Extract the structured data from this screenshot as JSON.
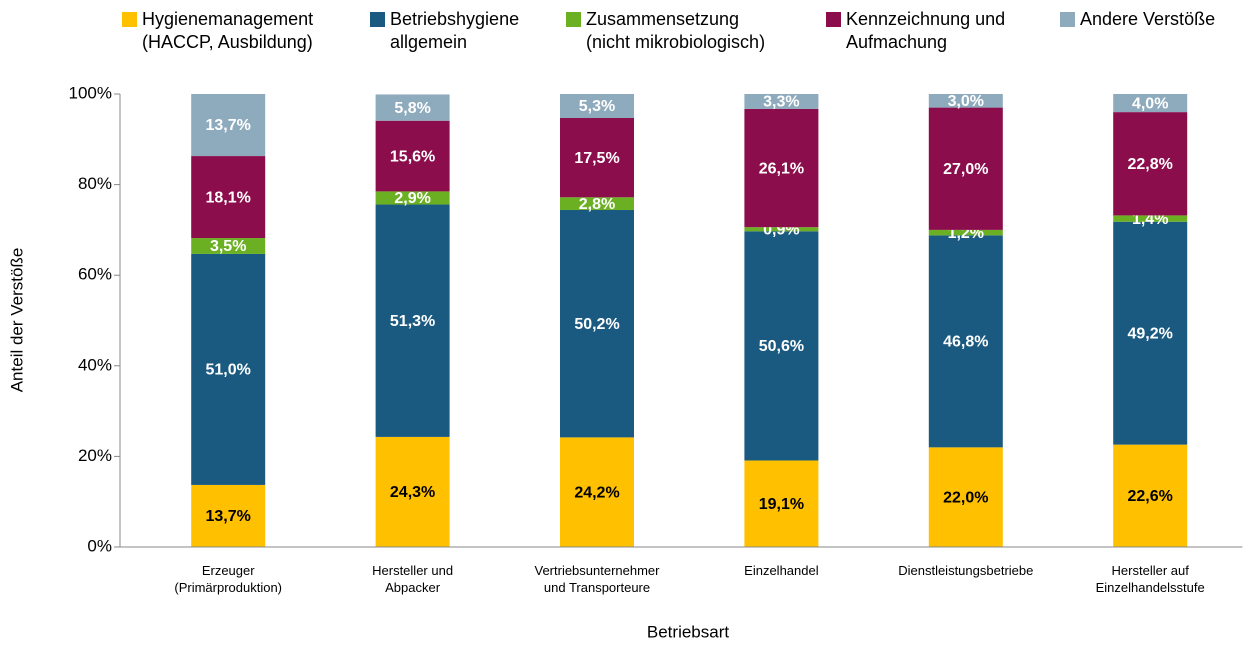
{
  "chart_data": {
    "type": "stacked_bar",
    "x_label": "Betriebsart",
    "y_label": "Anteil der Verstöße",
    "categories": [
      "Erzeuger\n(Primärproduktion)",
      "Hersteller und\nAbpacker",
      "Vertriebsunternehmer\nund Transporteure",
      "Einzelhandel",
      "Dienstleistungsbetriebe",
      "Hersteller auf\nEinzelhandelsstufe"
    ],
    "series": [
      {
        "name": "Hygienemanagement\n(HACCP, Ausbildung)",
        "color": "#ffc000",
        "values": [
          13.7,
          24.3,
          24.2,
          19.1,
          22.0,
          22.6
        ],
        "value_labels": [
          "13,7%",
          "24,3%",
          "24,2%",
          "19,1%",
          "22,0%",
          "22,6%"
        ]
      },
      {
        "name": "Betriebshygiene\nallgemein",
        "color": "#1b5a80",
        "values": [
          51.0,
          51.3,
          50.2,
          50.6,
          46.8,
          49.2
        ],
        "value_labels": [
          "51,0%",
          "51,3%",
          "50,2%",
          "50,6%",
          "46,8%",
          "49,2%"
        ]
      },
      {
        "name": "Zusammensetzung\n(nicht mikrobiologisch)",
        "color": "#6bb023",
        "values": [
          3.5,
          2.9,
          2.8,
          0.9,
          1.2,
          1.4
        ],
        "value_labels": [
          "3,5%",
          "2,9%",
          "2,8%",
          "0,9%",
          "1,2%",
          "1,4%"
        ]
      },
      {
        "name": "Kennzeichnung und\nAufmachung",
        "color": "#8b0d4b",
        "values": [
          18.1,
          15.6,
          17.5,
          26.1,
          27.0,
          22.8
        ],
        "value_labels": [
          "18,1%",
          "15,6%",
          "17,5%",
          "26,1%",
          "27,0%",
          "22,8%"
        ]
      },
      {
        "name": "Andere Verstöße",
        "color": "#8eaabd",
        "values": [
          13.7,
          5.8,
          5.3,
          3.3,
          3.0,
          4.0
        ],
        "value_labels": [
          "13,7%",
          "5,8%",
          "5,3%",
          "3,3%",
          "3,0%",
          "4,0%"
        ]
      }
    ],
    "ylim": [
      0,
      100
    ],
    "yticks": [
      {
        "value": 0,
        "label": "0%"
      },
      {
        "value": 20,
        "label": "20%"
      },
      {
        "value": 40,
        "label": "40%"
      },
      {
        "value": 60,
        "label": "60%"
      },
      {
        "value": 80,
        "label": "80%"
      },
      {
        "value": 100,
        "label": "100%"
      }
    ],
    "legend": "top"
  }
}
